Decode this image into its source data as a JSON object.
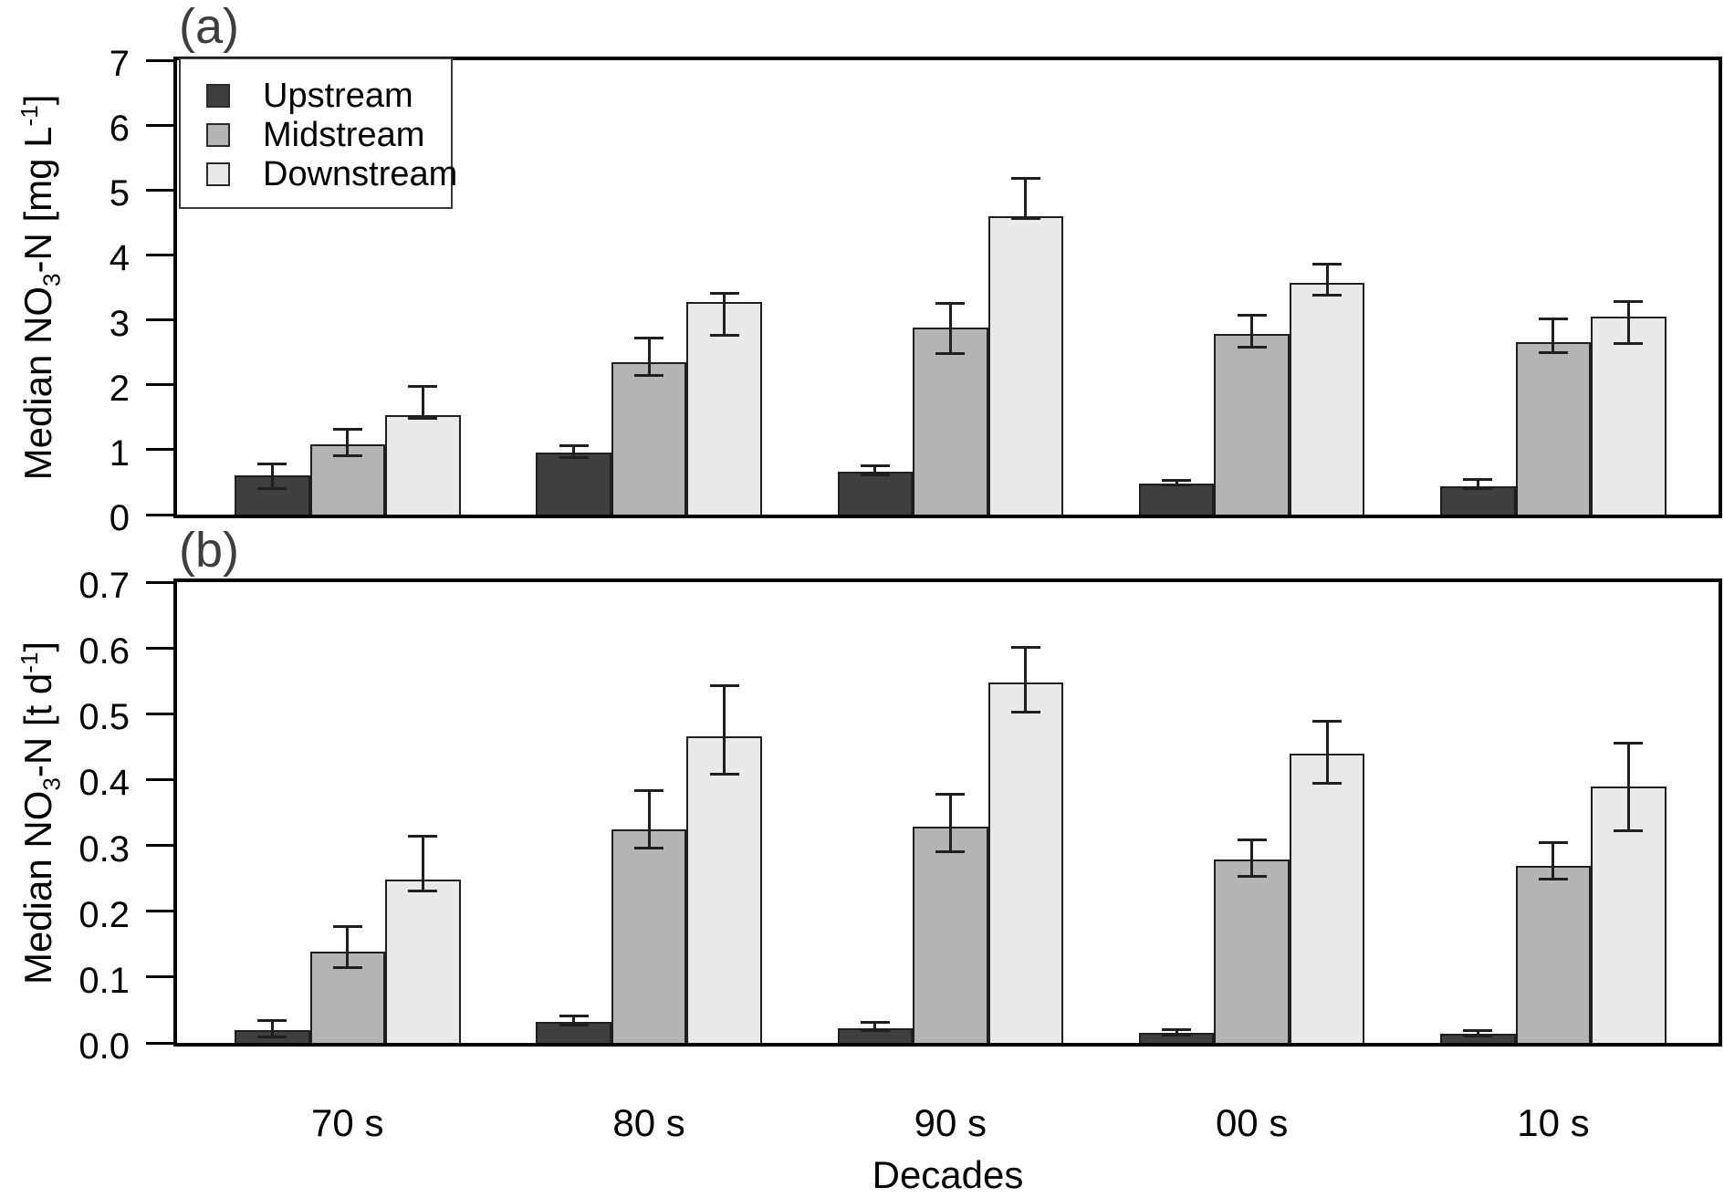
{
  "figure": {
    "panel_a_label": "(a)",
    "panel_b_label": "(b)",
    "x_axis_title": "Decades"
  },
  "ylabels": {
    "a": {
      "pre": "Median NO",
      "sub": "3",
      "mid": "-N [mg L",
      "sup": "-1",
      "post": "]"
    },
    "b": {
      "pre": "Median NO",
      "sub": "3",
      "mid": "-N [t d",
      "sup": "-1",
      "post": "]"
    }
  },
  "chart_data": [
    {
      "panel": "a",
      "type": "bar",
      "title": "(a)",
      "ylabel": "Median NO3-N [mg L-1]",
      "xlabel": "Decades",
      "ylim": [
        0,
        7
      ],
      "grid": false,
      "legend_position": "top-left",
      "yticks": [
        {
          "v": 0,
          "label": "0"
        },
        {
          "v": 1,
          "label": "1"
        },
        {
          "v": 2,
          "label": "2"
        },
        {
          "v": 3,
          "label": "3"
        },
        {
          "v": 4,
          "label": "4"
        },
        {
          "v": 5,
          "label": "5"
        },
        {
          "v": 6,
          "label": "6"
        },
        {
          "v": 7,
          "label": "7"
        }
      ],
      "categories": [
        "70 s",
        "80 s",
        "90 s",
        "00 s",
        "10 s"
      ],
      "series": [
        {
          "name": "Upstream",
          "color": "#3f3f3f",
          "values": [
            0.6,
            0.96,
            0.66,
            0.48,
            0.43
          ],
          "whisker_low": [
            0.4,
            0.87,
            0.61,
            0.45,
            0.4
          ],
          "whisker_high": [
            0.78,
            1.06,
            0.74,
            0.52,
            0.53
          ]
        },
        {
          "name": "Midstream",
          "color": "#b4b4b4",
          "values": [
            1.08,
            2.35,
            2.88,
            2.78,
            2.66
          ],
          "whisker_low": [
            0.9,
            2.13,
            2.48,
            2.57,
            2.49
          ],
          "whisker_high": [
            1.31,
            2.71,
            3.25,
            3.06,
            3.01
          ]
        },
        {
          "name": "Downstream",
          "color": "#e9e9e9",
          "values": [
            1.53,
            3.28,
            4.6,
            3.57,
            3.05
          ],
          "whisker_low": [
            1.48,
            2.76,
            4.55,
            3.37,
            2.63
          ],
          "whisker_high": [
            1.97,
            3.4,
            5.17,
            3.85,
            3.28
          ]
        }
      ]
    },
    {
      "panel": "b",
      "type": "bar",
      "title": "(b)",
      "ylabel": "Median NO3-N [t d-1]",
      "xlabel": "Decades",
      "ylim": [
        0,
        0.7
      ],
      "grid": false,
      "legend_position": "none",
      "yticks": [
        {
          "v": 0.0,
          "label": "0.0"
        },
        {
          "v": 0.1,
          "label": "0.1"
        },
        {
          "v": 0.2,
          "label": "0.2"
        },
        {
          "v": 0.3,
          "label": "0.3"
        },
        {
          "v": 0.4,
          "label": "0.4"
        },
        {
          "v": 0.5,
          "label": "0.5"
        },
        {
          "v": 0.6,
          "label": "0.6"
        },
        {
          "v": 0.7,
          "label": "0.7"
        }
      ],
      "categories": [
        "70 s",
        "80 s",
        "90 s",
        "00 s",
        "10 s"
      ],
      "series": [
        {
          "name": "Upstream",
          "color": "#3f3f3f",
          "values": [
            0.02,
            0.032,
            0.022,
            0.015,
            0.014
          ],
          "whisker_low": [
            0.008,
            0.027,
            0.018,
            0.011,
            0.01
          ],
          "whisker_high": [
            0.033,
            0.04,
            0.03,
            0.02,
            0.018
          ]
        },
        {
          "name": "Midstream",
          "color": "#b4b4b4",
          "values": [
            0.139,
            0.324,
            0.329,
            0.278,
            0.269
          ],
          "whisker_low": [
            0.114,
            0.295,
            0.29,
            0.252,
            0.248
          ],
          "whisker_high": [
            0.176,
            0.382,
            0.377,
            0.308,
            0.304
          ]
        },
        {
          "name": "Downstream",
          "color": "#e9e9e9",
          "values": [
            0.248,
            0.466,
            0.548,
            0.44,
            0.389
          ],
          "whisker_low": [
            0.23,
            0.407,
            0.502,
            0.394,
            0.321
          ],
          "whisker_high": [
            0.313,
            0.542,
            0.6,
            0.488,
            0.455
          ]
        }
      ]
    }
  ]
}
